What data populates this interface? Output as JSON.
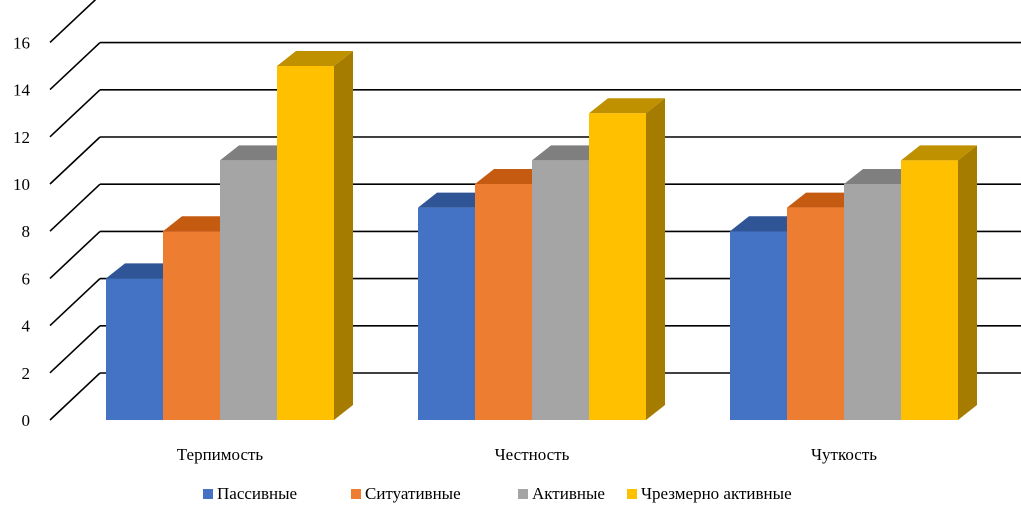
{
  "chart_data": {
    "type": "bar",
    "title": "",
    "xlabel": "",
    "ylabel": "",
    "categories": [
      "Терпимость",
      "Честность",
      "Чуткость"
    ],
    "series": [
      {
        "name": "Пассивные",
        "values": [
          6,
          9,
          8
        ],
        "color": "#4472C4",
        "top": "#2F5597",
        "side": "#2F5597"
      },
      {
        "name": "Ситуативные",
        "values": [
          8,
          10,
          9
        ],
        "color": "#ED7D31",
        "top": "#C55A11",
        "side": "#C55A11"
      },
      {
        "name": "Активные",
        "values": [
          11,
          11,
          10
        ],
        "color": "#A5A5A5",
        "top": "#7F7F7F",
        "side": "#7F7F7F"
      },
      {
        "name": "Чрезмерно активные",
        "values": [
          15,
          13,
          11
        ],
        "color": "#FFC000",
        "top": "#BF9000",
        "side": "#A67C00"
      }
    ],
    "ylim": [
      0,
      16
    ],
    "yticks": [
      0,
      2,
      4,
      6,
      8,
      10,
      12,
      14,
      16
    ],
    "grid": true,
    "legend_position": "bottom",
    "style": "3d-clustered-column"
  }
}
